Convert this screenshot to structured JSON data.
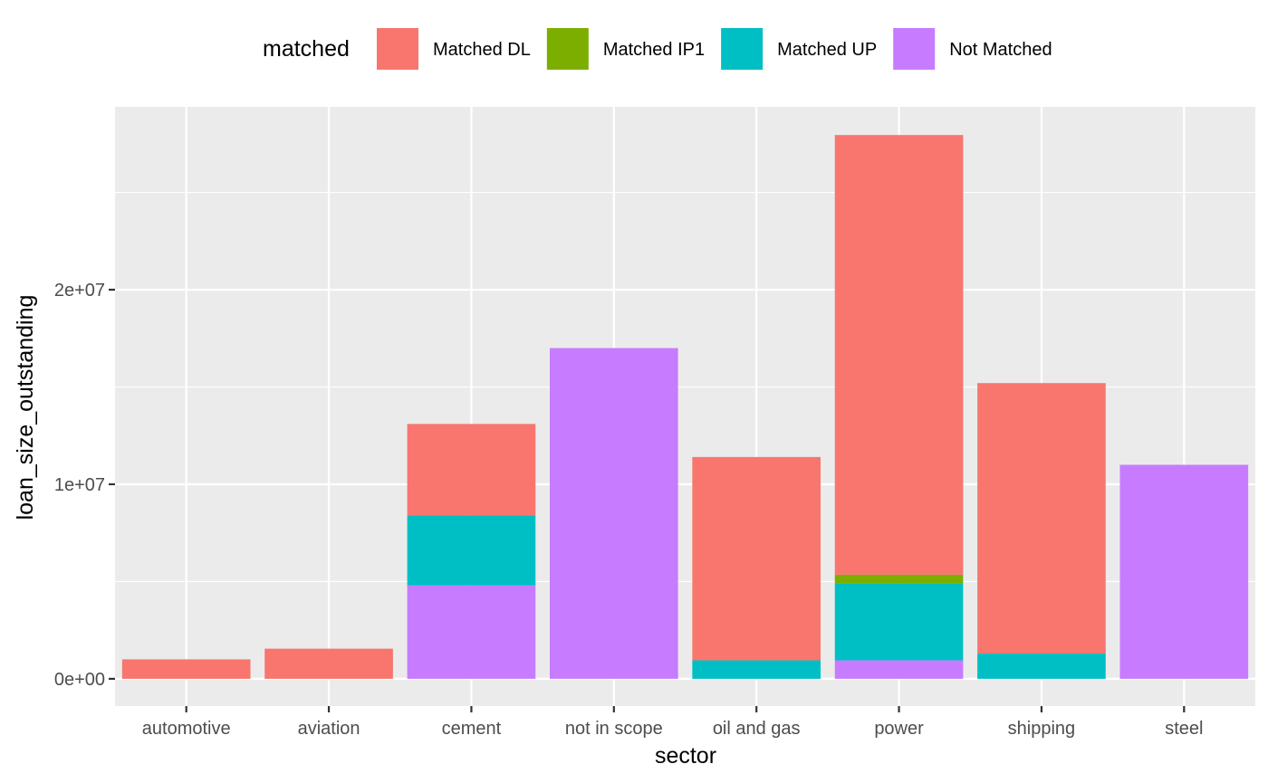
{
  "chart_data": {
    "type": "bar",
    "stacked": true,
    "xlabel": "sector",
    "ylabel": "loan_size_outstanding",
    "categories": [
      "automotive",
      "aviation",
      "cement",
      "not in scope",
      "oil and gas",
      "power",
      "shipping",
      "steel"
    ],
    "series": [
      {
        "name": "Matched DL",
        "color": "#F8766D",
        "values": [
          1000000,
          1550000,
          4700000,
          0,
          10450000,
          22600000,
          13900000,
          0
        ]
      },
      {
        "name": "Matched IP1",
        "color": "#7CAE00",
        "values": [
          0,
          0,
          0,
          0,
          0,
          450000,
          0,
          0
        ]
      },
      {
        "name": "Matched UP",
        "color": "#00BFC4",
        "values": [
          0,
          0,
          3600000,
          0,
          950000,
          3950000,
          1300000,
          0
        ]
      },
      {
        "name": "Not Matched",
        "color": "#C77CFF",
        "values": [
          0,
          0,
          4800000,
          17000000,
          0,
          950000,
          0,
          11000000
        ]
      }
    ],
    "stack_order_bottom_to_top": [
      "Not Matched",
      "Matched UP",
      "Matched IP1",
      "Matched DL"
    ],
    "ylim": [
      -1400000,
      29400000
    ],
    "yticks": [
      0,
      10000000,
      20000000
    ],
    "ytick_labels": [
      "0e+00",
      "1e+07",
      "2e+07"
    ],
    "legend": {
      "title": "matched",
      "position": "top"
    },
    "grid": true,
    "panel_background": "#EBEBEB",
    "grid_color": "#FFFFFF"
  }
}
